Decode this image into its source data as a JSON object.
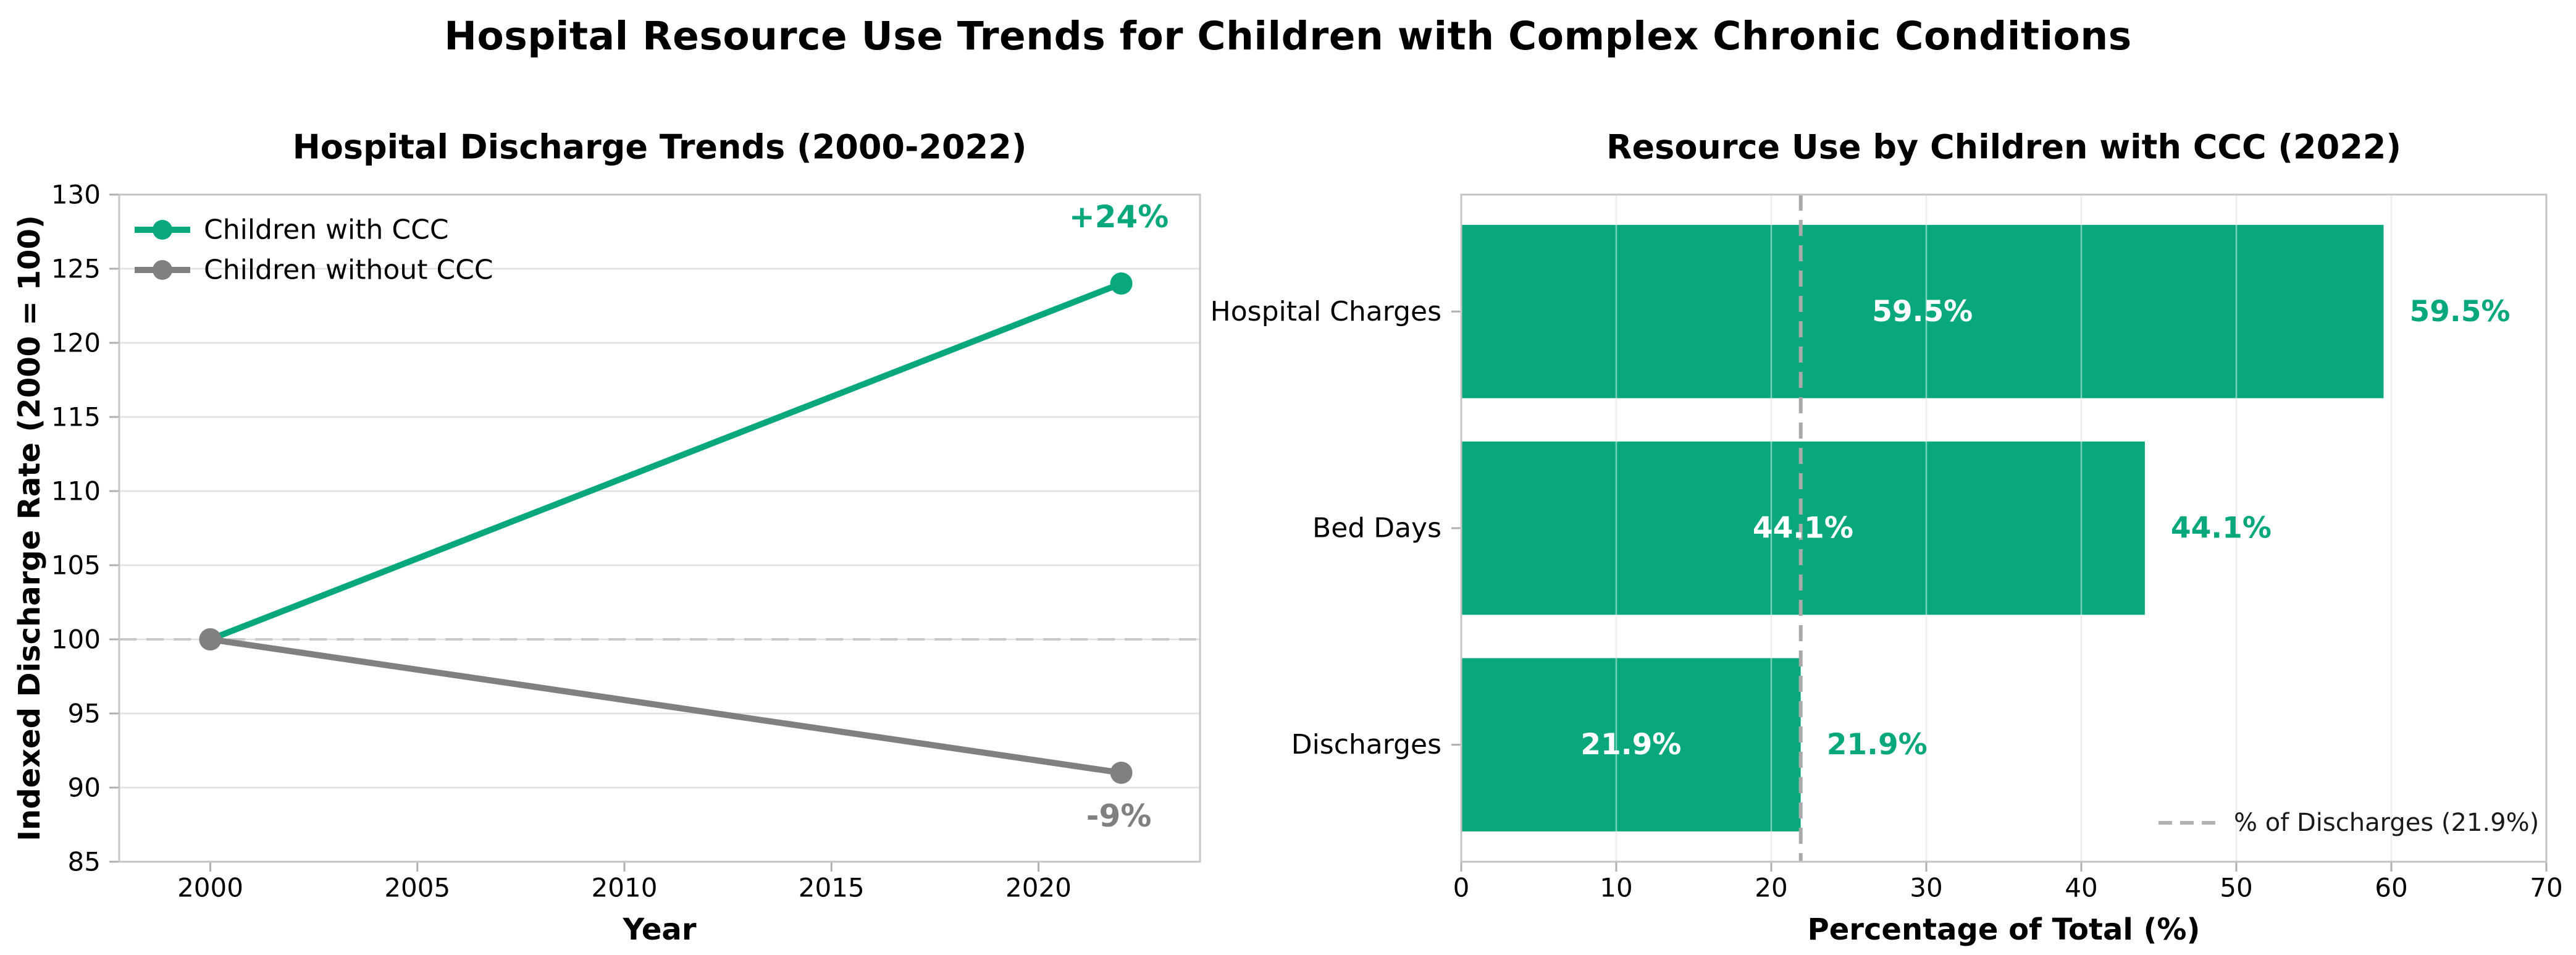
{
  "figure": {
    "title": "Hospital Resource Use Trends for Children with Complex Chronic Conditions",
    "background": "#ffffff"
  },
  "colors": {
    "accent_green": "#08a87c",
    "series_gray": "#808080",
    "grid": "#e0e0e0",
    "spine": "#c4c4c4",
    "tick_mark": "#b0b0b0",
    "text": "#000000",
    "reference_dash_left": "#c9c9c9",
    "reference_dash_right": "#a9a9a9",
    "legend_dash_sample": "#b3b3b3",
    "bar_inside_label": "#ffffff"
  },
  "chart_data": [
    {
      "type": "line",
      "title": "Hospital Discharge Trends (2000-2022)",
      "xlabel": "Year",
      "ylabel": "Indexed Discharge Rate (2000 = 100)",
      "xlim": [
        1997.8,
        2023.9
      ],
      "ylim": [
        85,
        130
      ],
      "xticks": [
        2000,
        2005,
        2010,
        2015,
        2020
      ],
      "yticks": [
        85,
        90,
        95,
        100,
        105,
        110,
        115,
        120,
        125,
        130
      ],
      "grid": "horizontal",
      "legend_position": "upper-left",
      "reference_line": {
        "axis": "y",
        "value": 100,
        "style": "dashed"
      },
      "series": [
        {
          "name": "Children with CCC",
          "color_key": "accent_green",
          "x": [
            2000,
            2022
          ],
          "y": [
            100,
            124
          ],
          "annotation": {
            "text": "+24%",
            "placement": "above-end"
          }
        },
        {
          "name": "Children without CCC",
          "color_key": "series_gray",
          "x": [
            2000,
            2022
          ],
          "y": [
            100,
            91
          ],
          "annotation": {
            "text": "-9%",
            "placement": "below-end"
          }
        }
      ]
    },
    {
      "type": "bar",
      "orientation": "horizontal",
      "title": "Resource Use by Children with CCC (2022)",
      "xlabel": "Percentage of Total (%)",
      "categories": [
        "Hospital Charges",
        "Bed Days",
        "Discharges"
      ],
      "values": [
        59.5,
        44.1,
        21.9
      ],
      "inside_labels": [
        "59.5%",
        "44.1%",
        "21.9%"
      ],
      "outside_labels": [
        "59.5%",
        "44.1%",
        "21.9%"
      ],
      "bar_color_key": "accent_green",
      "xlim": [
        0,
        70
      ],
      "xticks": [
        0,
        10,
        20,
        30,
        40,
        50,
        60,
        70
      ],
      "grid": "vertical",
      "reference_line": {
        "axis": "x",
        "value": 21.9,
        "style": "dashed",
        "legend_label": "% of Discharges (21.9%)"
      },
      "legend_position": "lower-right"
    }
  ]
}
